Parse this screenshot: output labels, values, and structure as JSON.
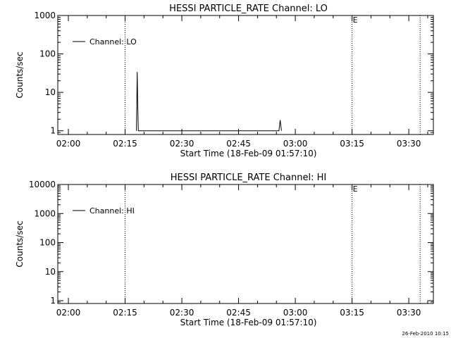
{
  "footer_timestamp": "26-Feb-2010 10:15",
  "chart_data": [
    {
      "type": "line",
      "title": "HESSI PARTICLE_RATE Channel: LO",
      "xlabel": "Start Time (18-Feb-09 01:57:10)",
      "ylabel": "Counts/sec",
      "y_scale": "log",
      "ylim": [
        0.8,
        1000
      ],
      "xlim_minutes": [
        117.2,
        216.5
      ],
      "x_ticks": [
        "02:00",
        "02:15",
        "02:30",
        "02:45",
        "03:00",
        "03:15",
        "03:30"
      ],
      "y_ticks": [
        "1",
        "10",
        "100",
        "1000"
      ],
      "legend": {
        "placement": "top-left",
        "entries": [
          {
            "label": "Channel: LO"
          }
        ]
      },
      "markers": [
        {
          "label": "",
          "x": "02:15"
        },
        {
          "label": "E",
          "x": "03:15"
        },
        {
          "label": "",
          "x": "03:33"
        }
      ],
      "series": [
        {
          "name": "Channel: LO",
          "points": [
            {
              "x": "02:18:00",
              "y": 1
            },
            {
              "x": "02:18:12",
              "y": 34
            },
            {
              "x": "02:18:20",
              "y": 5.5
            },
            {
              "x": "02:18:30",
              "y": 1
            },
            {
              "x": "02:55:40",
              "y": 1
            },
            {
              "x": "02:56:00",
              "y": 1.9
            },
            {
              "x": "02:56:20",
              "y": 1
            }
          ]
        }
      ]
    },
    {
      "type": "line",
      "title": "HESSI PARTICLE_RATE Channel: HI",
      "xlabel": "Start Time (18-Feb-09 01:57:10)",
      "ylabel": "Counts/sec",
      "y_scale": "log",
      "ylim": [
        0.8,
        10000
      ],
      "xlim_minutes": [
        117.2,
        216.5
      ],
      "x_ticks": [
        "02:00",
        "02:15",
        "02:30",
        "02:45",
        "03:00",
        "03:15",
        "03:30"
      ],
      "y_ticks": [
        "1",
        "10",
        "100",
        "1000",
        "10000"
      ],
      "legend": {
        "placement": "top-left",
        "entries": [
          {
            "label": "Channel: HI"
          }
        ]
      },
      "markers": [
        {
          "label": "",
          "x": "02:15"
        },
        {
          "label": "E",
          "x": "03:15"
        },
        {
          "label": "",
          "x": "03:33"
        }
      ],
      "series": [
        {
          "name": "Channel: HI",
          "points": []
        }
      ]
    }
  ]
}
